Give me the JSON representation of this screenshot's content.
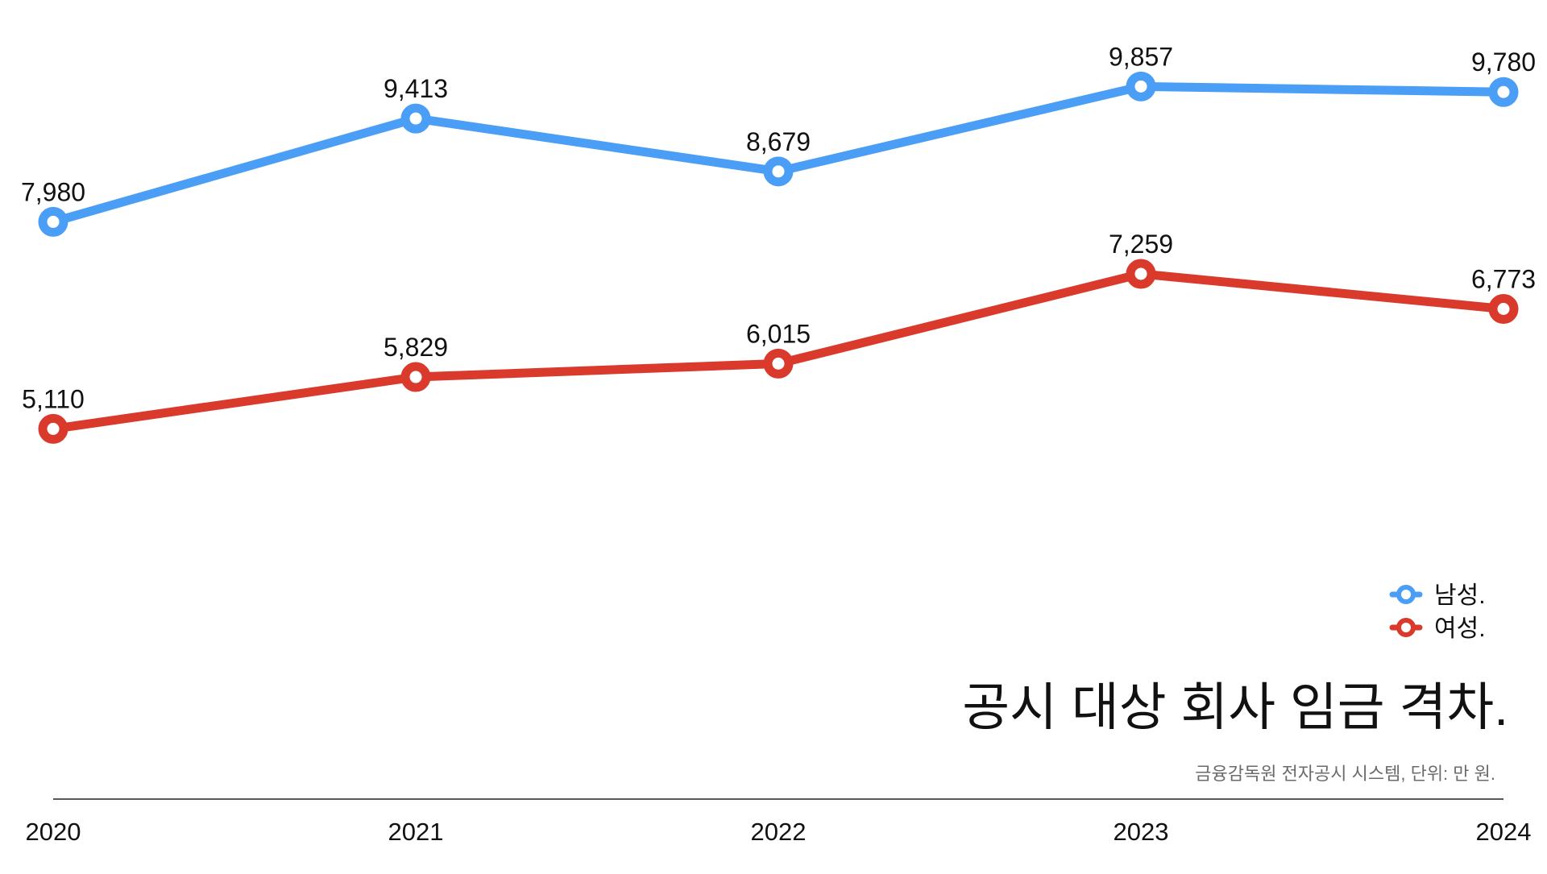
{
  "chart_data": {
    "type": "line",
    "title": "공시 대상 회사 임금 격차.",
    "source": "금융감독원 전자공시 시스템, 단위: 만 원.",
    "categories": [
      "2020",
      "2021",
      "2022",
      "2023",
      "2024"
    ],
    "series": [
      {
        "name": "남성.",
        "color": "#4a9ef5",
        "values": [
          7980,
          9413,
          8679,
          9857,
          9780
        ],
        "labels": [
          "7,980",
          "9,413",
          "8,679",
          "9,857",
          "9,780"
        ]
      },
      {
        "name": "여성.",
        "color": "#d93a2b",
        "values": [
          5110,
          5829,
          6015,
          7259,
          6773
        ],
        "labels": [
          "5,110",
          "5,829",
          "6,015",
          "7,259",
          "6,773"
        ]
      }
    ],
    "ylim": [
      0,
      11000
    ],
    "grid": false,
    "legend_position": "bottom-right",
    "xlabel": "",
    "ylabel": ""
  }
}
